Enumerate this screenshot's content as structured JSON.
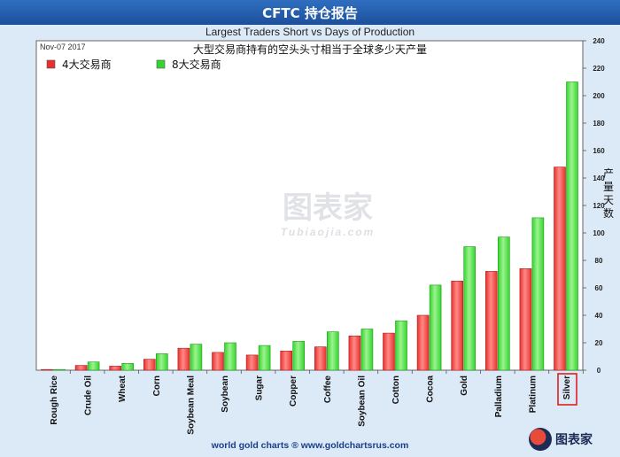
{
  "header": {
    "title": "CFTC 持仓报告",
    "subtitle": "Largest Traders Short vs Days of Production"
  },
  "footer": {
    "credit": "world gold charts ® www.goldchartsrus.com"
  },
  "logo": {
    "text": "图表家"
  },
  "watermark": {
    "main": "图表家",
    "sub": "Tubiaojia.com"
  },
  "chart_data": {
    "type": "bar",
    "title": "大型交易商持有的空头头寸相当于全球多少天产量",
    "date": "Nov-07  2017",
    "ylabel": "产量天数",
    "ylim": [
      0,
      240
    ],
    "yticks": [
      0,
      20,
      40,
      60,
      80,
      100,
      120,
      140,
      160,
      180,
      200,
      220,
      240
    ],
    "legend_placement": "top-left",
    "grid": false,
    "categories": [
      "Rough Rice",
      "Crude Oil",
      "Wheat",
      "Corn",
      "Soybean Meal",
      "Soybean",
      "Sugar",
      "Copper",
      "Coffee",
      "Soybean Oil",
      "Cotton",
      "Cocoa",
      "Gold",
      "Palladium",
      "Platinum",
      "Silver"
    ],
    "highlighted_category": "Silver",
    "series": [
      {
        "name": "4大交易商",
        "color": "#e8312f",
        "values": [
          0.5,
          3.5,
          3,
          8,
          16,
          13,
          11,
          14,
          17,
          25,
          27,
          40,
          65,
          72,
          74,
          148
        ]
      },
      {
        "name": "8大交易商",
        "color": "#33d62e",
        "values": [
          0.5,
          6,
          5,
          12,
          19,
          20,
          18,
          21,
          28,
          30,
          36,
          62,
          90,
          97,
          111,
          210
        ]
      }
    ]
  }
}
